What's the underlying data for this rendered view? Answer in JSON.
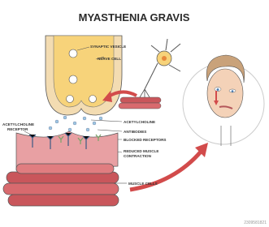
{
  "title": "MYASTHENIA GRAVIS",
  "labels": {
    "synaptic_vesicle": "SYNAPTIC VESICLE",
    "nerve_cell": "NERVE CELL",
    "acetylcholine_receptor": [
      "ACETYLCHOLINE",
      "RECEPTOR"
    ],
    "acetylcholine": "ACETYLCHOLINE",
    "antibodies": "ANTIBODIES",
    "blocked_receptors": "BLOCKED RECEPTORS",
    "reduced_muscle_contraction": [
      "REDUCED MUSCLE",
      "CONTRACTION"
    ],
    "muscle_cells": "MUSCLE CELLS"
  },
  "image_id": "2309581821"
}
